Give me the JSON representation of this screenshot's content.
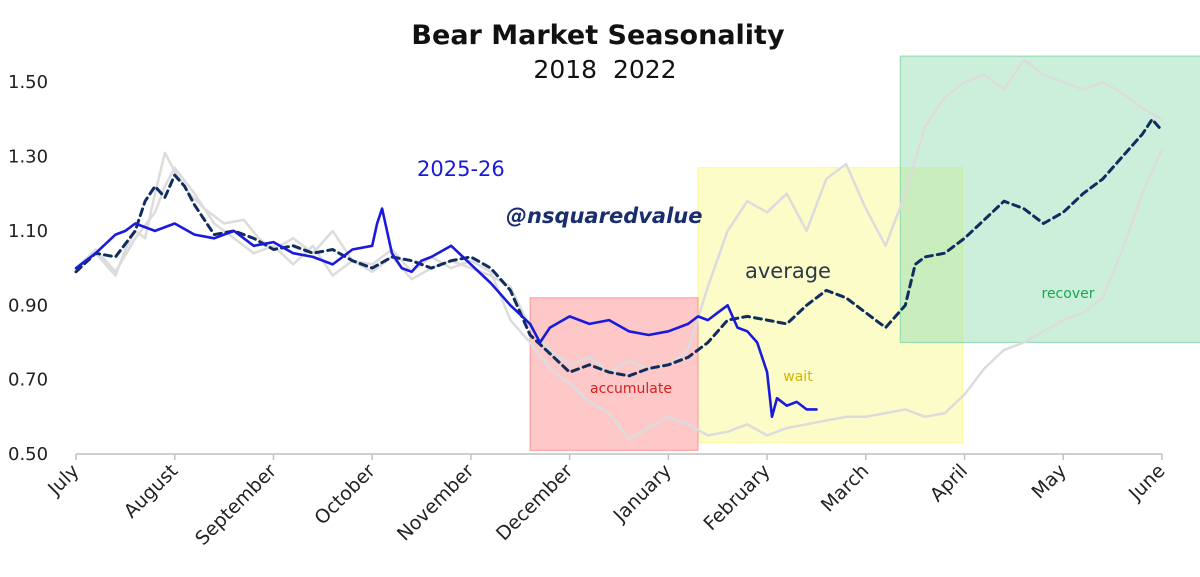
{
  "chart_data": {
    "type": "line",
    "title": "Bear Market Seasonality",
    "subtitle": "2018  2022",
    "xlabel": "",
    "ylabel": "",
    "ylim": [
      0.5,
      1.6
    ],
    "yticks": [
      0.5,
      0.7,
      0.9,
      1.1,
      1.3,
      1.5
    ],
    "ytick_labels": [
      "0.50",
      "0.70",
      "0.90",
      "1.10",
      "1.30",
      "1.50"
    ],
    "xlim": [
      0,
      11
    ],
    "months": [
      "July",
      "August",
      "September",
      "October",
      "November",
      "December",
      "January",
      "February",
      "March",
      "April",
      "May",
      "June"
    ],
    "zones": [
      {
        "label": "accumulate",
        "x": [
          4.6,
          6.3
        ],
        "y": [
          0.51,
          0.92
        ],
        "fill": "#ff9a9a",
        "text_color": "#d62020"
      },
      {
        "label": "wait",
        "x": [
          6.3,
          8.98
        ],
        "y": [
          0.53,
          1.27
        ],
        "fill": "#fafa9a",
        "text_color": "#d4b400"
      },
      {
        "label": "recover",
        "x": [
          8.35,
          11.4
        ],
        "y": [
          0.8,
          1.57
        ],
        "fill": "#8fdcb0",
        "text_color": "#18a84e"
      }
    ],
    "annotations": [
      {
        "text": "2025-26",
        "color": "#1a1adb"
      },
      {
        "text": "@nsquaredvalue",
        "color": "#1a2e6e"
      },
      {
        "text": "average",
        "color": "#2b3a4a"
      }
    ],
    "series": [
      {
        "name": "2018",
        "color": "#dcdcdc",
        "style": "solid",
        "x": [
          0,
          0.2,
          0.4,
          0.5,
          0.6,
          0.7,
          0.8,
          0.9,
          1.0,
          1.15,
          1.3,
          1.5,
          1.7,
          1.85,
          2.0,
          2.2,
          2.4,
          2.6,
          2.8,
          3.0,
          3.2,
          3.4,
          3.6,
          3.8,
          4.0,
          4.2,
          4.4,
          4.6,
          4.8,
          5.0,
          5.2,
          5.4,
          5.6,
          5.8,
          6.0,
          6.2,
          6.4,
          6.6,
          6.8,
          7.0,
          7.2,
          7.4,
          7.6,
          7.8,
          8.0,
          8.2,
          8.4,
          8.6,
          8.8,
          9.0,
          9.2,
          9.4,
          9.6,
          9.8,
          10.0,
          10.2,
          10.4,
          10.6,
          10.8,
          11.0
        ],
        "values": [
          0.99,
          1.04,
          0.98,
          1.05,
          1.1,
          1.08,
          1.2,
          1.31,
          1.26,
          1.2,
          1.16,
          1.12,
          1.13,
          1.08,
          1.05,
          1.08,
          1.04,
          1.1,
          1.02,
          1.01,
          1.05,
          0.99,
          1.03,
          1.0,
          1.02,
          0.99,
          0.86,
          0.8,
          0.73,
          0.69,
          0.64,
          0.61,
          0.54,
          0.57,
          0.6,
          0.58,
          0.55,
          0.56,
          0.58,
          0.55,
          0.57,
          0.58,
          0.59,
          0.6,
          0.6,
          0.61,
          0.62,
          0.6,
          0.61,
          0.66,
          0.73,
          0.78,
          0.8,
          0.83,
          0.86,
          0.88,
          0.92,
          1.05,
          1.2,
          1.32
        ]
      },
      {
        "name": "2022",
        "color": "#dcdcdc",
        "style": "solid",
        "x": [
          0,
          0.2,
          0.4,
          0.6,
          0.8,
          0.9,
          1.0,
          1.2,
          1.4,
          1.6,
          1.8,
          2.0,
          2.2,
          2.4,
          2.6,
          2.8,
          3.0,
          3.2,
          3.4,
          3.6,
          3.8,
          4.0,
          4.2,
          4.4,
          4.6,
          4.8,
          5.0,
          5.2,
          5.4,
          5.6,
          5.8,
          6.0,
          6.2,
          6.4,
          6.6,
          6.8,
          7.0,
          7.2,
          7.4,
          7.6,
          7.8,
          8.0,
          8.2,
          8.4,
          8.6,
          8.8,
          9.0,
          9.2,
          9.4,
          9.6,
          9.8,
          10.0,
          10.2,
          10.4,
          10.6,
          10.8,
          11.0
        ],
        "values": [
          1.0,
          1.05,
          0.99,
          1.08,
          1.15,
          1.22,
          1.27,
          1.2,
          1.12,
          1.08,
          1.04,
          1.06,
          1.01,
          1.06,
          0.98,
          1.02,
          0.99,
          1.03,
          0.97,
          1.0,
          1.02,
          1.0,
          0.98,
          0.95,
          0.84,
          0.78,
          0.74,
          0.76,
          0.72,
          0.75,
          0.73,
          0.74,
          0.78,
          0.95,
          1.1,
          1.18,
          1.15,
          1.2,
          1.1,
          1.24,
          1.28,
          1.16,
          1.06,
          1.2,
          1.38,
          1.46,
          1.5,
          1.52,
          1.48,
          1.56,
          1.52,
          1.5,
          1.48,
          1.5,
          1.47,
          1.43,
          1.4
        ]
      },
      {
        "name": "average",
        "color": "#0f2e5e",
        "style": "dashed",
        "x": [
          0,
          0.2,
          0.4,
          0.6,
          0.7,
          0.8,
          0.9,
          1.0,
          1.1,
          1.2,
          1.4,
          1.6,
          1.8,
          2.0,
          2.2,
          2.4,
          2.6,
          2.8,
          3.0,
          3.2,
          3.4,
          3.6,
          3.8,
          4.0,
          4.2,
          4.4,
          4.6,
          4.8,
          5.0,
          5.2,
          5.4,
          5.6,
          5.8,
          6.0,
          6.2,
          6.4,
          6.6,
          6.8,
          7.0,
          7.2,
          7.4,
          7.6,
          7.8,
          8.0,
          8.2,
          8.4,
          8.5,
          8.6,
          8.8,
          9.0,
          9.2,
          9.4,
          9.6,
          9.8,
          10.0,
          10.2,
          10.4,
          10.6,
          10.8,
          10.9,
          11.0
        ],
        "values": [
          0.99,
          1.04,
          1.03,
          1.1,
          1.18,
          1.22,
          1.19,
          1.25,
          1.22,
          1.17,
          1.09,
          1.1,
          1.08,
          1.05,
          1.06,
          1.04,
          1.05,
          1.02,
          1.0,
          1.03,
          1.02,
          1.0,
          1.02,
          1.03,
          1.0,
          0.94,
          0.82,
          0.77,
          0.72,
          0.74,
          0.72,
          0.71,
          0.73,
          0.74,
          0.76,
          0.8,
          0.86,
          0.87,
          0.86,
          0.85,
          0.9,
          0.94,
          0.92,
          0.88,
          0.84,
          0.9,
          1.01,
          1.03,
          1.04,
          1.08,
          1.13,
          1.18,
          1.16,
          1.12,
          1.15,
          1.2,
          1.24,
          1.3,
          1.36,
          1.4,
          1.37
        ]
      },
      {
        "name": "2025-26",
        "color": "#1a1adb",
        "style": "solid",
        "x": [
          0,
          0.2,
          0.4,
          0.5,
          0.6,
          0.8,
          1.0,
          1.2,
          1.4,
          1.6,
          1.8,
          2.0,
          2.2,
          2.4,
          2.6,
          2.8,
          3.0,
          3.05,
          3.1,
          3.15,
          3.2,
          3.3,
          3.4,
          3.5,
          3.6,
          3.8,
          4.0,
          4.2,
          4.4,
          4.6,
          4.7,
          4.8,
          5.0,
          5.2,
          5.4,
          5.6,
          5.8,
          6.0,
          6.2,
          6.3,
          6.4,
          6.5,
          6.6,
          6.7,
          6.8,
          6.9,
          7.0,
          7.05,
          7.1,
          7.2,
          7.3,
          7.4,
          7.5
        ],
        "values": [
          1.0,
          1.04,
          1.09,
          1.1,
          1.12,
          1.1,
          1.12,
          1.09,
          1.08,
          1.1,
          1.06,
          1.07,
          1.04,
          1.03,
          1.01,
          1.05,
          1.06,
          1.12,
          1.16,
          1.1,
          1.04,
          1.0,
          0.99,
          1.02,
          1.03,
          1.06,
          1.01,
          0.96,
          0.9,
          0.85,
          0.8,
          0.84,
          0.87,
          0.85,
          0.86,
          0.83,
          0.82,
          0.83,
          0.85,
          0.87,
          0.86,
          0.88,
          0.9,
          0.84,
          0.83,
          0.8,
          0.72,
          0.6,
          0.65,
          0.63,
          0.64,
          0.62,
          0.62
        ]
      }
    ]
  }
}
